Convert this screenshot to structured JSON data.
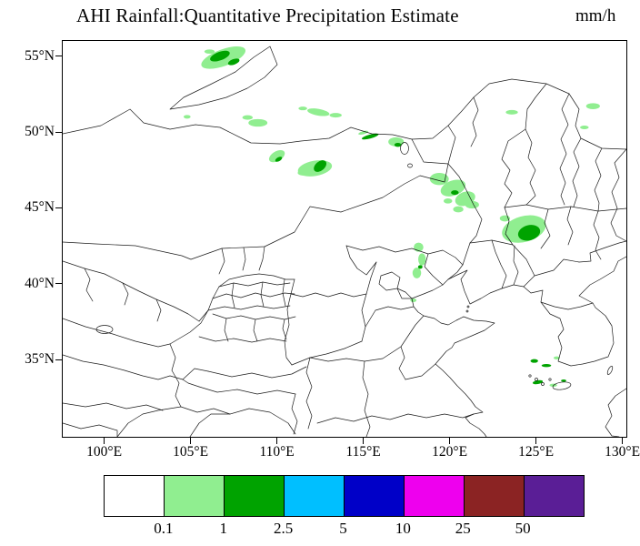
{
  "title": "AHI Rainfall:Quantitative Precipitation Estimate",
  "units_label": "mm/h",
  "axes": {
    "lat_ticks": [
      {
        "label": "55°N",
        "value": 55
      },
      {
        "label": "50°N",
        "value": 50
      },
      {
        "label": "45°N",
        "value": 45
      },
      {
        "label": "40°N",
        "value": 40
      },
      {
        "label": "35°N",
        "value": 35
      }
    ],
    "lon_ticks": [
      {
        "label": "100°E",
        "value": 100
      },
      {
        "label": "105°E",
        "value": 105
      },
      {
        "label": "110°E",
        "value": 110
      },
      {
        "label": "115°E",
        "value": 115
      },
      {
        "label": "120°E",
        "value": 120
      },
      {
        "label": "125°E",
        "value": 125
      },
      {
        "label": "130°E",
        "value": 130
      }
    ]
  },
  "map_bounds": {
    "lon_min": 97.6,
    "lon_max": 130.23,
    "lat_min": 29.9,
    "lat_max": 56.0
  },
  "colorbar": {
    "colors": [
      "#ffffff",
      "#90ee90",
      "#00a300",
      "#00bfff",
      "#0000c8",
      "#ee00ee",
      "#8b2323",
      "#5a1e96"
    ],
    "labels": [
      "0.1",
      "1",
      "2.5",
      "5",
      "10",
      "25",
      "50"
    ]
  },
  "chart_data": {
    "type": "heatmap",
    "title": "AHI Rainfall:Quantitative Precipitation Estimate",
    "units": "mm/h",
    "lon_range": [
      97.6,
      130.2
    ],
    "lat_range": [
      29.9,
      56.0
    ],
    "thresholds_mm_per_h": [
      0.1,
      1,
      2.5,
      5,
      10,
      25,
      50
    ],
    "palette": [
      "#ffffff",
      "#90ee90",
      "#00a300",
      "#00bfff",
      "#0000c8",
      "#ee00ee",
      "#8b2323",
      "#5a1e96"
    ],
    "legend_position": "bottom",
    "levels_legend": {
      "1": "0.1-1 mm/h (light green)",
      "2": "1-2.5 mm/h (green)"
    },
    "cells_columns": [
      "lon",
      "lat",
      "rx_deg",
      "ry_deg",
      "rotation_deg",
      "level_index"
    ],
    "cells": [
      [
        106.9,
        54.9,
        1.35,
        0.55,
        -20,
        1
      ],
      [
        106.7,
        55.0,
        0.6,
        0.28,
        -20,
        2
      ],
      [
        107.5,
        54.62,
        0.35,
        0.18,
        -20,
        2
      ],
      [
        106.1,
        55.3,
        0.3,
        0.14,
        0,
        1
      ],
      [
        104.8,
        51.0,
        0.2,
        0.12,
        0,
        1
      ],
      [
        108.9,
        50.6,
        0.55,
        0.25,
        0,
        1
      ],
      [
        108.3,
        50.95,
        0.3,
        0.15,
        0,
        1
      ],
      [
        112.4,
        51.3,
        0.65,
        0.22,
        10,
        1
      ],
      [
        113.4,
        51.1,
        0.35,
        0.15,
        0,
        1
      ],
      [
        111.5,
        51.55,
        0.25,
        0.12,
        0,
        1
      ],
      [
        110.0,
        48.4,
        0.5,
        0.32,
        -30,
        1
      ],
      [
        110.1,
        48.2,
        0.22,
        0.13,
        -30,
        2
      ],
      [
        112.2,
        47.6,
        1.0,
        0.5,
        -10,
        1
      ],
      [
        112.5,
        47.75,
        0.42,
        0.3,
        -40,
        2
      ],
      [
        111.5,
        47.3,
        0.3,
        0.17,
        0,
        1
      ],
      [
        115.4,
        49.7,
        0.5,
        0.13,
        -15,
        2
      ],
      [
        115.0,
        49.95,
        0.3,
        0.1,
        -15,
        1
      ],
      [
        116.9,
        49.35,
        0.45,
        0.3,
        0,
        1
      ],
      [
        117.0,
        49.15,
        0.2,
        0.13,
        0,
        2
      ],
      [
        123.6,
        51.3,
        0.35,
        0.15,
        0,
        1
      ],
      [
        128.3,
        51.7,
        0.4,
        0.2,
        0,
        1
      ],
      [
        127.8,
        50.3,
        0.25,
        0.12,
        0,
        1
      ],
      [
        119.4,
        46.9,
        0.55,
        0.4,
        0,
        1
      ],
      [
        120.2,
        46.3,
        0.75,
        0.5,
        -20,
        1
      ],
      [
        120.9,
        45.6,
        0.6,
        0.45,
        -20,
        1
      ],
      [
        120.3,
        46.0,
        0.22,
        0.15,
        0,
        2
      ],
      [
        121.3,
        45.2,
        0.4,
        0.25,
        0,
        1
      ],
      [
        120.5,
        44.9,
        0.3,
        0.2,
        0,
        1
      ],
      [
        119.9,
        45.45,
        0.25,
        0.17,
        0,
        1
      ],
      [
        124.3,
        43.6,
        1.3,
        0.85,
        -15,
        1
      ],
      [
        124.6,
        43.35,
        0.65,
        0.5,
        -15,
        2
      ],
      [
        123.2,
        44.3,
        0.3,
        0.2,
        0,
        1
      ],
      [
        118.2,
        42.4,
        0.28,
        0.3,
        0,
        1
      ],
      [
        118.4,
        41.6,
        0.22,
        0.4,
        0,
        1
      ],
      [
        118.1,
        40.7,
        0.25,
        0.35,
        0,
        1
      ],
      [
        118.3,
        41.1,
        0.13,
        0.12,
        0,
        2
      ],
      [
        117.9,
        38.9,
        0.18,
        0.12,
        0,
        1
      ],
      [
        124.9,
        34.9,
        0.22,
        0.12,
        0,
        2
      ],
      [
        125.6,
        34.6,
        0.28,
        0.1,
        0,
        2
      ],
      [
        126.2,
        35.1,
        0.18,
        0.1,
        0,
        1
      ],
      [
        125.1,
        33.5,
        0.3,
        0.12,
        -10,
        2
      ],
      [
        126.0,
        33.3,
        0.22,
        0.1,
        0,
        1
      ],
      [
        126.6,
        33.6,
        0.15,
        0.08,
        0,
        2
      ]
    ]
  }
}
